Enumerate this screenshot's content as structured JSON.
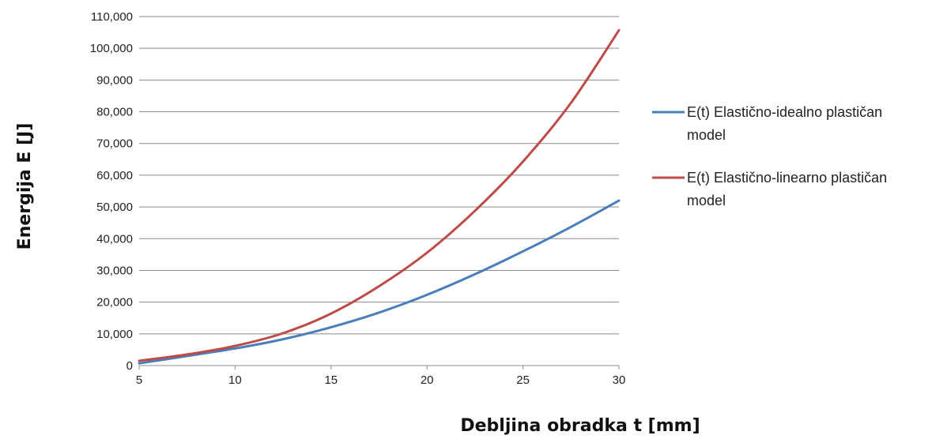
{
  "chart_data": {
    "type": "line",
    "title": "",
    "xlabel": "Debljina obradka t [mm]",
    "ylabel": "Energija E [J]",
    "xlim": [
      5,
      30
    ],
    "ylim": [
      0,
      110000
    ],
    "xticks": [
      5,
      10,
      15,
      20,
      25,
      30
    ],
    "xtick_labels": [
      "5",
      "10",
      "15",
      "20",
      "25",
      "30"
    ],
    "yticks": [
      0,
      10000,
      20000,
      30000,
      40000,
      50000,
      60000,
      70000,
      80000,
      90000,
      100000,
      110000
    ],
    "ytick_labels": [
      "0",
      "10,000",
      "20,000",
      "30,000",
      "40,000",
      "50,000",
      "60,000",
      "70,000",
      "80,000",
      "90,000",
      "100,000",
      "110,000"
    ],
    "grid": "horizontal",
    "legend": "right",
    "x": [
      5,
      7.5,
      10,
      12.5,
      15,
      17.5,
      20,
      22.5,
      25,
      27.5,
      30
    ],
    "series": [
      {
        "name": "E(t) Elastično-idealno plastičan model",
        "name_lines": [
          "E(t) Elastično-idealno plastičan",
          "model"
        ],
        "color": "#4A7EBB",
        "values": [
          700,
          3000,
          5400,
          8300,
          12100,
          16700,
          22300,
          28800,
          36000,
          43700,
          52000
        ]
      },
      {
        "name": "E(t) Elastično-linearno plastičan model",
        "name_lines": [
          "E(t) Elastično-linearno plastičan",
          "model"
        ],
        "color": "#BE4B48",
        "values": [
          1500,
          3500,
          6200,
          10200,
          16400,
          25000,
          35600,
          48800,
          64300,
          82800,
          105700
        ]
      }
    ]
  }
}
